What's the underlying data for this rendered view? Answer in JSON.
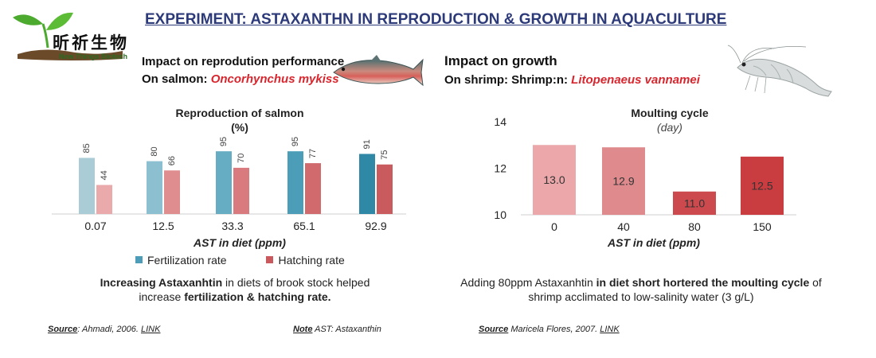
{
  "page_title": "EXPERIMENT: ASTAXANTHN IN REPRODUCTION & GROWTH IN AQUACULTURE",
  "logo": {
    "name_cn": "昕祈生物",
    "name_en": "New Things Biotech",
    "colors": {
      "leaf": "#4caa2e",
      "soil": "#6b4a2a"
    }
  },
  "left": {
    "heading1": "Impact on reprodution performance",
    "heading2_prefix": "On salmon: ",
    "heading2_species": "Oncorhynchus mykiss",
    "image": "rainbow-trout-image",
    "caption_bold1": "Increasing Astaxanhtin",
    "caption_text1": " in diets of brook stock helped increase ",
    "caption_bold2": "fertilization & hatching rate.",
    "source_label": "Source",
    "source_text": ": Ahmadi, 2006. ",
    "source_link": "LINK",
    "note_label": "Note",
    "note_text": " AST: Astaxanthin"
  },
  "right": {
    "heading1": "Impact on growth",
    "heading2_prefix": "On shrimp: Shrimp:n: ",
    "heading2_species": "Litopenaeus vannamei",
    "image": "shrimp-image",
    "caption_text1": "Adding 80ppm Astaxanhtin ",
    "caption_bold1": "in diet short hortered the moulting cycle",
    "caption_text2": " of shrimp acclimated to low-salinity water (3 g/L)",
    "source_label": "Source",
    "source_text": " Maricela Flores, 2007. ",
    "source_link": "LINK"
  },
  "chart_data": [
    {
      "type": "bar",
      "title": "Reproduction of salmon",
      "subtitle": "(%)",
      "xlabel": "AST in diet (ppm)",
      "ylabel": "",
      "categories": [
        "0.07",
        "12.5",
        "33.3",
        "65.1",
        "92.9"
      ],
      "series": [
        {
          "name": "Fertilization rate",
          "values": [
            85,
            80,
            95,
            95,
            91
          ],
          "colors": [
            "#a9ccd7",
            "#8cbfcf",
            "#66adc3",
            "#4c9db8",
            "#2e88a6"
          ]
        },
        {
          "name": "Hatching rate",
          "values": [
            44,
            66,
            70,
            77,
            75
          ],
          "colors": [
            "#eaa9ab",
            "#e08d90",
            "#d97b7e",
            "#d06a6d",
            "#c95a5d"
          ]
        }
      ],
      "legend_position": "bottom",
      "ylim": [
        0,
        100
      ],
      "grid": false,
      "legend_colors": [
        "#4d9db8",
        "#c9595d"
      ]
    },
    {
      "type": "bar",
      "title": "Moulting cycle",
      "subtitle": "(day)",
      "xlabel": "AST in diet (ppm)",
      "ylabel": "",
      "categories": [
        "0",
        "40",
        "80",
        "150"
      ],
      "values": [
        13.0,
        12.9,
        11.0,
        12.5
      ],
      "value_labels": [
        "13.0",
        "12.9",
        "11.0",
        "12.5"
      ],
      "colors": [
        "#eba7a9",
        "#df8a8d",
        "#cc4a4e",
        "#c93c40"
      ],
      "ylim": [
        10,
        14
      ],
      "yticks": [
        10,
        12,
        14
      ],
      "grid": false
    }
  ]
}
